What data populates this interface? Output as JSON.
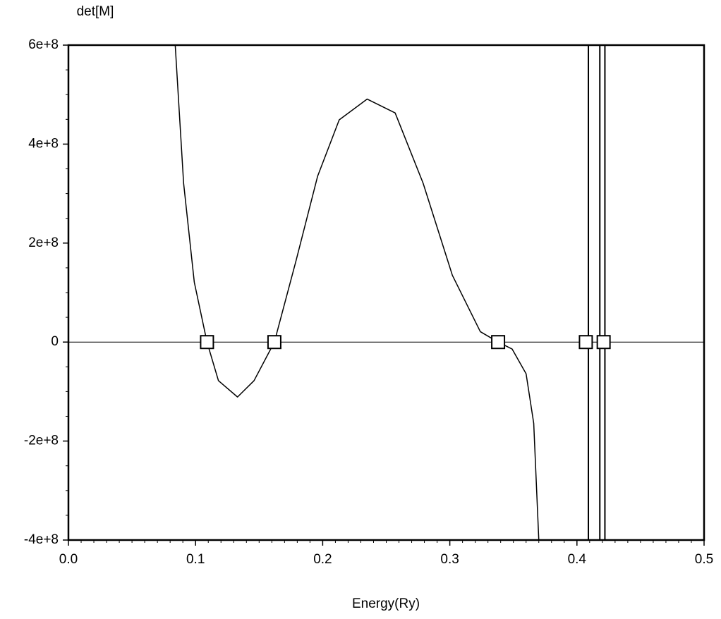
{
  "chart_data": {
    "type": "line",
    "ylabel": "det[M]",
    "xlabel": "Energy(Ry)",
    "x": [
      0.084,
      0.0906,
      0.099,
      0.109,
      0.118,
      0.133,
      0.146,
      0.162,
      0.179,
      0.196,
      0.213,
      0.235,
      0.257,
      0.279,
      0.302,
      0.324,
      0.338,
      0.349,
      0.36,
      0.366,
      0.37
    ],
    "series": [
      {
        "color": "#000000",
        "values": [
          600000000,
          321000000,
          121000000,
          0,
          -78000000,
          -111000000,
          -78000000,
          0,
          164000000,
          335000000,
          449000000,
          491000000,
          463000000,
          321000000,
          135000000,
          21000000,
          0,
          -14000000,
          -64000000,
          -164000000,
          -400000000
        ]
      }
    ],
    "roots": {
      "x": [
        0.109,
        0.162,
        0.338,
        0.407,
        0.421
      ],
      "values": [
        0,
        0,
        0,
        0,
        0
      ]
    },
    "poles": [
      0.409,
      0.418,
      0.422
    ],
    "zero_line": true,
    "xlim": [
      0,
      0.5
    ],
    "ylim": [
      -400000000,
      600000000
    ],
    "xticks": [
      {
        "value": 0,
        "label": "0.0"
      },
      0.1,
      0.2,
      0.3,
      0.4,
      0.5
    ],
    "yticks": [
      {
        "value": -400000000,
        "label": "-4e+8"
      },
      {
        "value": -200000000,
        "label": "-2e+8"
      },
      0,
      {
        "value": 200000000,
        "label": "2e+8"
      },
      {
        "value": 400000000,
        "label": "4e+8"
      },
      {
        "value": 600000000,
        "label": "6e+8"
      }
    ]
  }
}
